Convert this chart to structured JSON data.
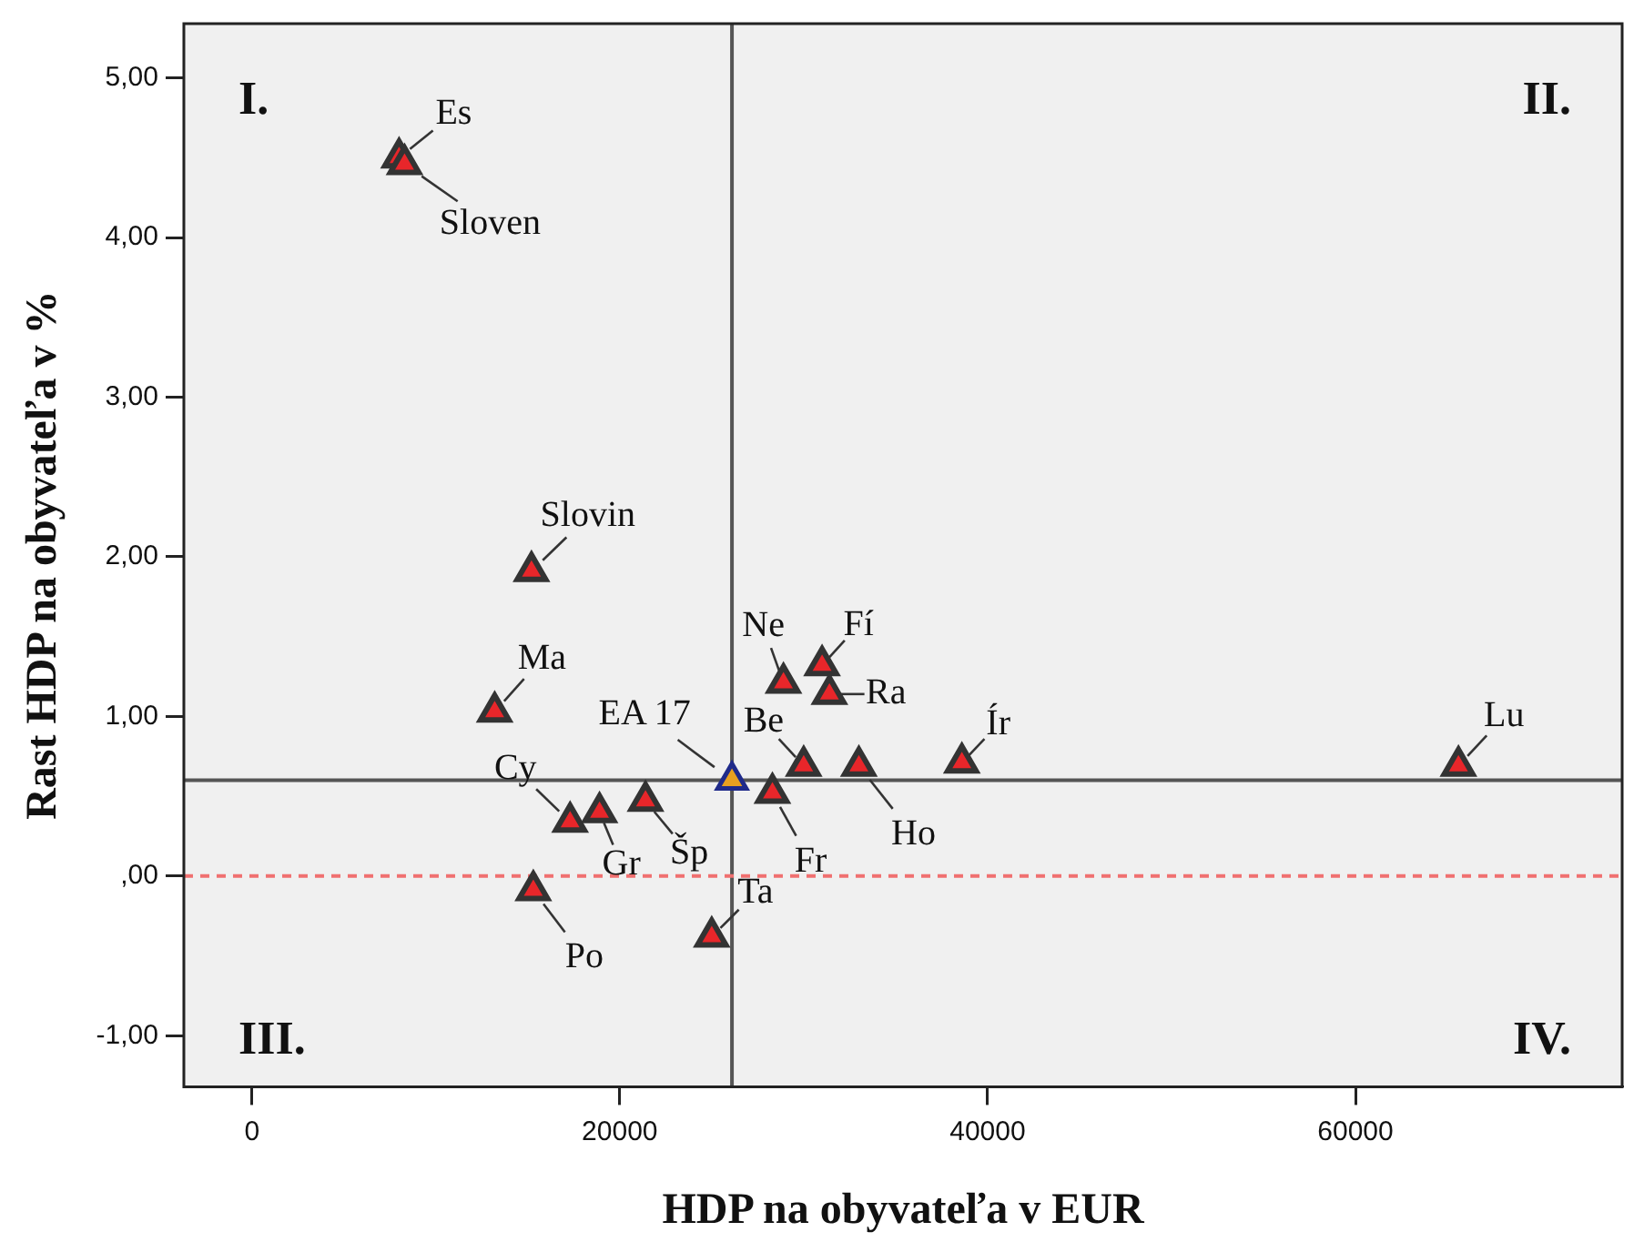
{
  "chart_data": {
    "type": "scatter",
    "xlabel": "HDP na obyvateľa v EUR",
    "ylabel": "Rast HDP na obyvateľa v %",
    "xlim": [
      -3700,
      74500
    ],
    "ylim": [
      -1.32,
      5.34
    ],
    "xticks": [
      0,
      20000,
      40000,
      60000
    ],
    "yticks": [
      {
        "value": -1,
        "label": "-1,00"
      },
      {
        "value": 0,
        "label": ",00"
      },
      {
        "value": 1,
        "label": "1,00"
      },
      {
        "value": 2,
        "label": "2,00"
      },
      {
        "value": 3,
        "label": "3,00"
      },
      {
        "value": 4,
        "label": "4,00"
      },
      {
        "value": 5,
        "label": "5,00"
      }
    ],
    "grid": false,
    "legend": false,
    "marker": "triangle",
    "series": [
      {
        "color": "#e8262a",
        "x": [
          8000,
          8300,
          15200,
          13200,
          17300,
          18900,
          21400,
          15300,
          25000,
          30000,
          28300,
          28900,
          31000,
          31400,
          33000,
          38600,
          65600
        ],
        "values": [
          4.5,
          4.46,
          1.91,
          1.03,
          0.34,
          0.4,
          0.47,
          -0.09,
          -0.38,
          0.69,
          0.52,
          1.21,
          1.32,
          1.14,
          0.69,
          0.71,
          0.69
        ]
      },
      {
        "color": "#e8a020",
        "x": [
          26100
        ],
        "values": [
          0.6
        ]
      }
    ],
    "ref_lines": [
      {
        "axis": "y",
        "value": 0.6,
        "color": "#555555",
        "line_style": "solid"
      },
      {
        "axis": "x",
        "value": 26100,
        "color": "#555555",
        "line_style": "solid"
      },
      {
        "axis": "y",
        "value": 0,
        "color": "#f07070",
        "line_style": "dashed"
      }
    ],
    "annotations": [
      "I.",
      "II.",
      "III.",
      "IV.",
      {
        "text": "Es",
        "x": 8000,
        "y": 4.5
      },
      {
        "text": "Sloven",
        "x": 8300,
        "y": 4.46
      },
      {
        "text": "Slovin",
        "x": 15200,
        "y": 1.91
      },
      {
        "text": "Ma",
        "x": 13200,
        "y": 1.03
      },
      {
        "text": "Cy",
        "x": 17300,
        "y": 0.34
      },
      {
        "text": "Gr",
        "x": 18900,
        "y": 0.4
      },
      {
        "text": "Šp",
        "x": 21400,
        "y": 0.47
      },
      {
        "text": "Po",
        "x": 15300,
        "y": -0.09
      },
      {
        "text": "Ta",
        "x": 25000,
        "y": -0.38
      },
      {
        "text": "Be",
        "x": 30000,
        "y": 0.69
      },
      {
        "text": "Fr",
        "x": 28300,
        "y": 0.52
      },
      {
        "text": "Ne",
        "x": 28900,
        "y": 1.21
      },
      {
        "text": "Fí",
        "x": 31000,
        "y": 1.32
      },
      {
        "text": "Ra",
        "x": 31400,
        "y": 1.14
      },
      {
        "text": "Ho",
        "x": 33000,
        "y": 0.69
      },
      {
        "text": "Ír",
        "x": 38600,
        "y": 0.71
      },
      {
        "text": "Lu",
        "x": 65600,
        "y": 0.69
      },
      {
        "text": "EA 17",
        "x": 26100,
        "y": 0.6
      }
    ]
  }
}
